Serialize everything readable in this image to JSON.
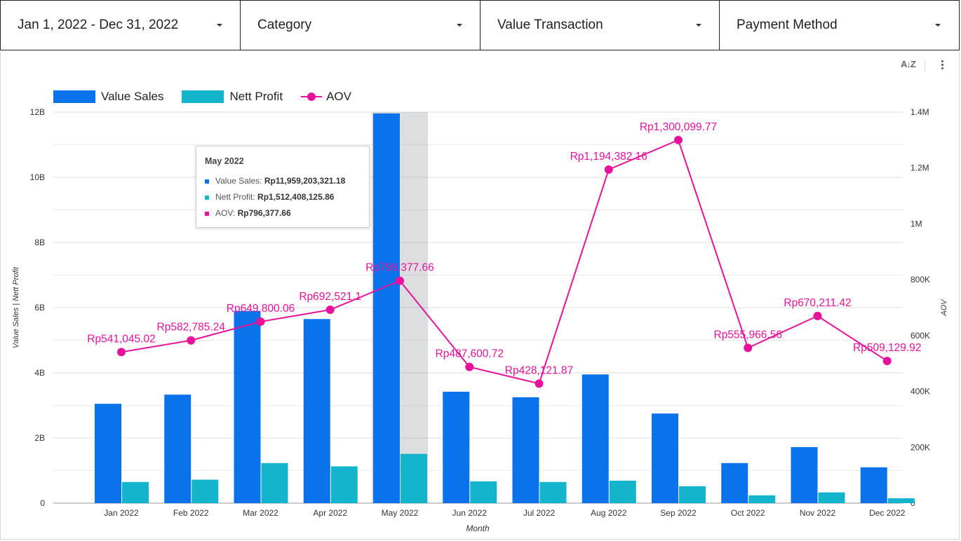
{
  "filters": {
    "date_range": "Jan 1, 2022 - Dec 31, 2022",
    "category": "Category",
    "value_transaction": "Value Transaction",
    "payment_method": "Payment Method"
  },
  "toolbar": {
    "sort_icon": "A↓Z"
  },
  "colors": {
    "value_sales": "#0a73eb",
    "nett_profit": "#12b5cb",
    "aov": "#e6139a"
  },
  "tooltip": {
    "title": "May 2022",
    "rows": [
      {
        "label": "Value Sales: ",
        "value": "Rp11,959,203,321.18"
      },
      {
        "label": "Nett Profit: ",
        "value": "Rp1,512,408,125.86"
      },
      {
        "label": "AOV: ",
        "value": "Rp796,377.66"
      }
    ]
  },
  "chart_data": {
    "type": "bar",
    "xlabel": "Month",
    "ylabel": "Value Sales | Nett Profit",
    "y2label": "AOV",
    "categories": [
      "Jan 2022",
      "Feb 2022",
      "Mar 2022",
      "Apr 2022",
      "May 2022",
      "Jun 2022",
      "Jul 2022",
      "Aug 2022",
      "Sep 2022",
      "Oct 2022",
      "Nov 2022",
      "Dec 2022"
    ],
    "ylim": [
      0,
      12000000000
    ],
    "y2lim": [
      0,
      1400000
    ],
    "y_ticks": [
      "0",
      "2B",
      "4B",
      "6B",
      "8B",
      "10B",
      "12B"
    ],
    "y2_ticks": [
      "0",
      "200K",
      "400K",
      "600K",
      "800K",
      "1M",
      "1.2M",
      "1.4M"
    ],
    "grid": true,
    "legend_position": "top-left",
    "highlighted_category": "May 2022",
    "series": [
      {
        "name": "Value Sales",
        "kind": "bar",
        "axis": "left",
        "values": [
          3050000000,
          3330000000,
          5900000000,
          5650000000,
          11959203321.18,
          3420000000,
          3250000000,
          3950000000,
          2750000000,
          1230000000,
          1720000000,
          1100000000
        ]
      },
      {
        "name": "Nett Profit",
        "kind": "bar",
        "axis": "left",
        "values": [
          650000000,
          720000000,
          1230000000,
          1130000000,
          1512408125.86,
          670000000,
          650000000,
          690000000,
          520000000,
          240000000,
          330000000,
          150000000
        ]
      },
      {
        "name": "AOV",
        "kind": "line",
        "axis": "right",
        "values": [
          541045.02,
          582785.24,
          649800.06,
          692521.1,
          796377.66,
          487600.72,
          428121.87,
          1194382.16,
          1300099.77,
          555966.56,
          670211.42,
          509129.92
        ],
        "labels": [
          "Rp541,045.02",
          "Rp582,785.24",
          "Rp649,800.06",
          "Rp692,521.1",
          "Rp796,377.66",
          "Rp487,600.72",
          "Rp428,121.87",
          "Rp1,194,382.16",
          "Rp1,300,099.77",
          "Rp555,966.56",
          "Rp670,211.42",
          "Rp509,129.92"
        ]
      }
    ]
  }
}
